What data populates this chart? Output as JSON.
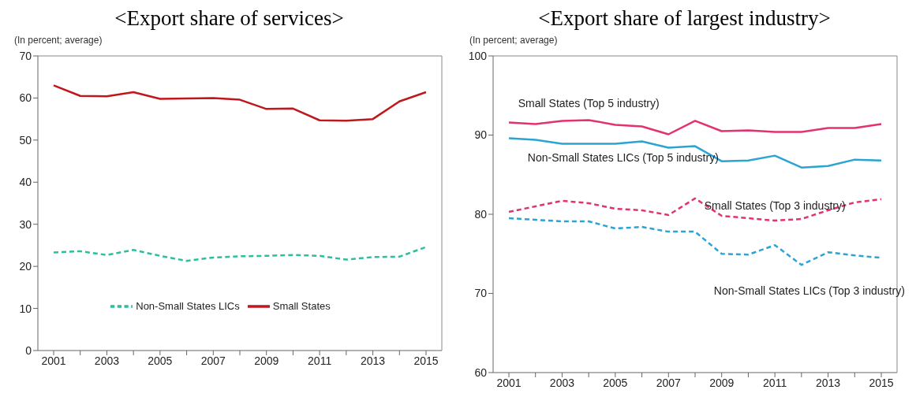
{
  "chart_data": [
    {
      "type": "line",
      "title": "<Export share of services>",
      "ylabel": "(In percent; average)",
      "categories": [
        "2001",
        null,
        "2003",
        null,
        "2005",
        null,
        "2007",
        null,
        "2009",
        null,
        "2011",
        null,
        "2013",
        null,
        "2015"
      ],
      "series": [
        {
          "name": "Small States",
          "color": "#c0171d",
          "line_style": "solid",
          "values": [
            63,
            60.5,
            60.4,
            61.4,
            59.8,
            59.9,
            60,
            59.6,
            57.4,
            57.5,
            54.7,
            54.6,
            55,
            59.2,
            61.4
          ]
        },
        {
          "name": "Non-Small States LICs",
          "color": "#2dbf9c",
          "line_style": "dashed",
          "values": [
            23.3,
            23.6,
            22.7,
            23.9,
            22.5,
            21.3,
            22.1,
            22.4,
            22.5,
            22.7,
            22.5,
            21.6,
            22.2,
            22.3,
            24.6
          ]
        }
      ],
      "ylim": [
        0,
        70
      ],
      "yticks": [
        0,
        10,
        20,
        30,
        40,
        50,
        60,
        70
      ],
      "grid": false,
      "legend": "bottom",
      "marker": "none"
    },
    {
      "type": "line",
      "title": "<Export share of largest industry>",
      "ylabel": "(In percent; average)",
      "categories": [
        "2001",
        null,
        "2003",
        null,
        "2005",
        null,
        "2007",
        null,
        "2009",
        null,
        "2011",
        null,
        "2013",
        null,
        "2015"
      ],
      "series": [
        {
          "name": "Small States (Top 5 industry)",
          "color": "#e2336b",
          "line_style": "solid",
          "values": [
            91.6,
            91.4,
            91.8,
            91.9,
            91.3,
            91.1,
            90.1,
            91.8,
            90.5,
            90.6,
            90.4,
            90.4,
            90.9,
            90.9,
            91.4
          ]
        },
        {
          "name": "Non-Small States LICs (Top 5 industry)",
          "color": "#2ba4d4",
          "line_style": "solid",
          "values": [
            89.6,
            89.4,
            88.9,
            88.9,
            88.9,
            89.2,
            88.4,
            88.6,
            86.7,
            86.8,
            87.4,
            85.9,
            86.1,
            86.9,
            86.8
          ]
        },
        {
          "name": "Small States (Top 3 industry)",
          "color": "#e2336b",
          "line_style": "dashed",
          "values": [
            80.3,
            81,
            81.7,
            81.4,
            80.7,
            80.5,
            79.9,
            82,
            79.8,
            79.5,
            79.2,
            79.4,
            80.5,
            81.5,
            81.9
          ]
        },
        {
          "name": "Non-Small States LICs (Top 3 industry)",
          "color": "#2ba4d4",
          "line_style": "dashed",
          "values": [
            79.5,
            79.3,
            79.1,
            79.1,
            78.2,
            78.4,
            77.8,
            77.8,
            75,
            74.9,
            76.1,
            73.6,
            75.2,
            74.8,
            74.5
          ]
        }
      ],
      "ylim": [
        60,
        100
      ],
      "yticks": [
        60,
        70,
        80,
        90,
        100
      ],
      "grid": false,
      "legend": false,
      "marker": "none"
    }
  ]
}
